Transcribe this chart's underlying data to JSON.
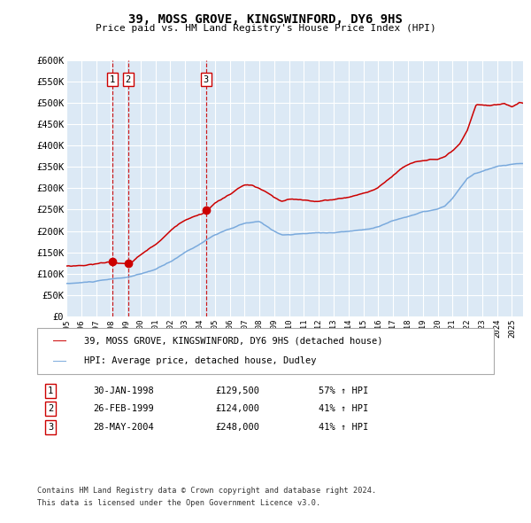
{
  "title": "39, MOSS GROVE, KINGSWINFORD, DY6 9HS",
  "subtitle": "Price paid vs. HM Land Registry's House Price Index (HPI)",
  "red_label": "39, MOSS GROVE, KINGSWINFORD, DY6 9HS (detached house)",
  "blue_label": "HPI: Average price, detached house, Dudley",
  "sale_points": [
    {
      "label": "1",
      "date": "30-JAN-1998",
      "price": 129500,
      "pct": "57% ↑ HPI"
    },
    {
      "label": "2",
      "date": "26-FEB-1999",
      "price": 124000,
      "pct": "41% ↑ HPI"
    },
    {
      "label": "3",
      "date": "28-MAY-2004",
      "price": 248000,
      "pct": "41% ↑ HPI"
    }
  ],
  "sale_dates_decimal": [
    1998.08,
    1999.15,
    2004.4
  ],
  "sale_prices": [
    129500,
    124000,
    248000
  ],
  "ylim": [
    0,
    600000
  ],
  "yticks": [
    0,
    50000,
    100000,
    150000,
    200000,
    250000,
    300000,
    350000,
    400000,
    450000,
    500000,
    550000,
    600000
  ],
  "ytick_labels": [
    "£0",
    "£50K",
    "£100K",
    "£150K",
    "£200K",
    "£250K",
    "£300K",
    "£350K",
    "£400K",
    "£450K",
    "£500K",
    "£550K",
    "£600K"
  ],
  "xlim_start": 1995.0,
  "xlim_end": 2025.75,
  "bg_color": "#dce9f5",
  "grid_color": "#ffffff",
  "red_color": "#cc0000",
  "blue_color": "#7aaadd",
  "dashed_color": "#cc0000",
  "footnote_line1": "Contains HM Land Registry data © Crown copyright and database right 2024.",
  "footnote_line2": "This data is licensed under the Open Government Licence v3.0.",
  "sale_box_border": "#cc0000"
}
